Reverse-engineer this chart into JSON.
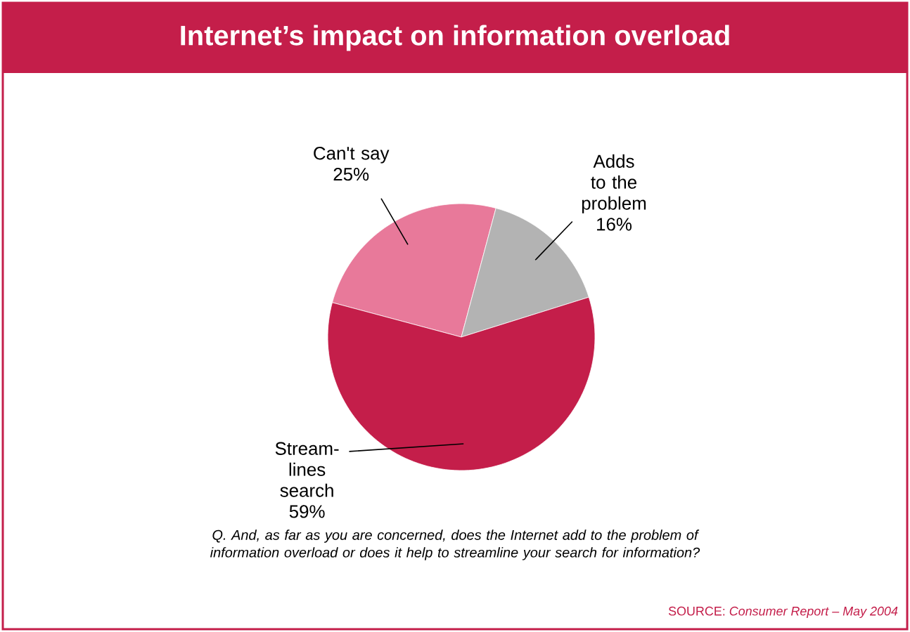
{
  "chart_data": {
    "type": "pie",
    "title": "Internet’s impact on information overload",
    "categories": [
      "Can't say",
      "Adds to the problem",
      "Stream-lines search"
    ],
    "values": [
      25,
      16,
      59
    ],
    "value_labels": [
      "25%",
      "16%",
      "59%"
    ],
    "colors": [
      "#e8799a",
      "#b3b3b3",
      "#c41e4a"
    ],
    "annotations": [
      "Q. And, as far as you are concerned, does the Internet add to the problem of information overload or does it help to streamline your search for information?",
      "SOURCE: *Consumer Report – May 2004*"
    ]
  }
}
